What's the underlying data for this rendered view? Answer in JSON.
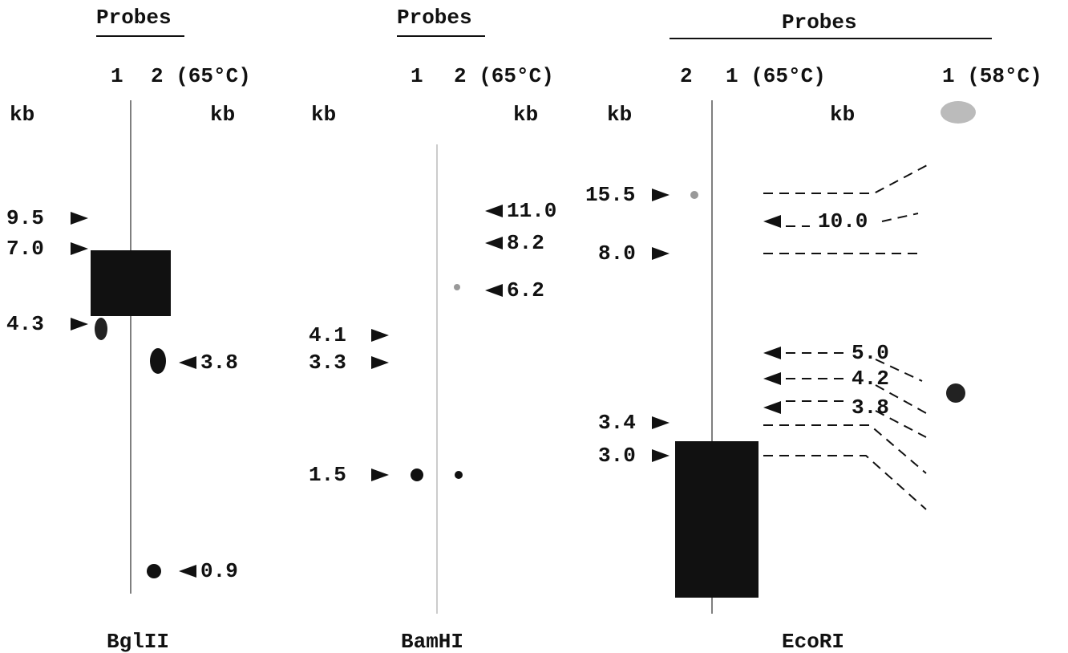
{
  "panels": [
    {
      "header": "Probes",
      "lanes": [
        "1",
        "2 (65°C)"
      ],
      "kb_left": "kb",
      "kb_right": "kb",
      "left_markers": [
        "9.5",
        "7.0",
        "4.3"
      ],
      "right_markers": [
        "3.8",
        "0.9"
      ],
      "enzyme": "BglII"
    },
    {
      "header": "Probes",
      "lanes": [
        "1",
        "2 (65°C)"
      ],
      "kb_left": "kb",
      "kb_right": "kb",
      "left_markers": [
        "4.1",
        "3.3",
        "1.5"
      ],
      "right_markers": [
        "11.0",
        "8.2",
        "6.2"
      ],
      "enzyme": "BamHI"
    },
    {
      "header": "Probes",
      "lanes": [
        "2",
        "1 (65°C)",
        "1 (58°C)"
      ],
      "kb_left": "kb",
      "kb_right": "kb",
      "left_markers": [
        "15.5",
        "8.0",
        "3.4",
        "3.0"
      ],
      "right_markers": [
        "10.0",
        "5.0",
        "4.2",
        "3.8"
      ],
      "enzyme": "EcoRI"
    }
  ]
}
